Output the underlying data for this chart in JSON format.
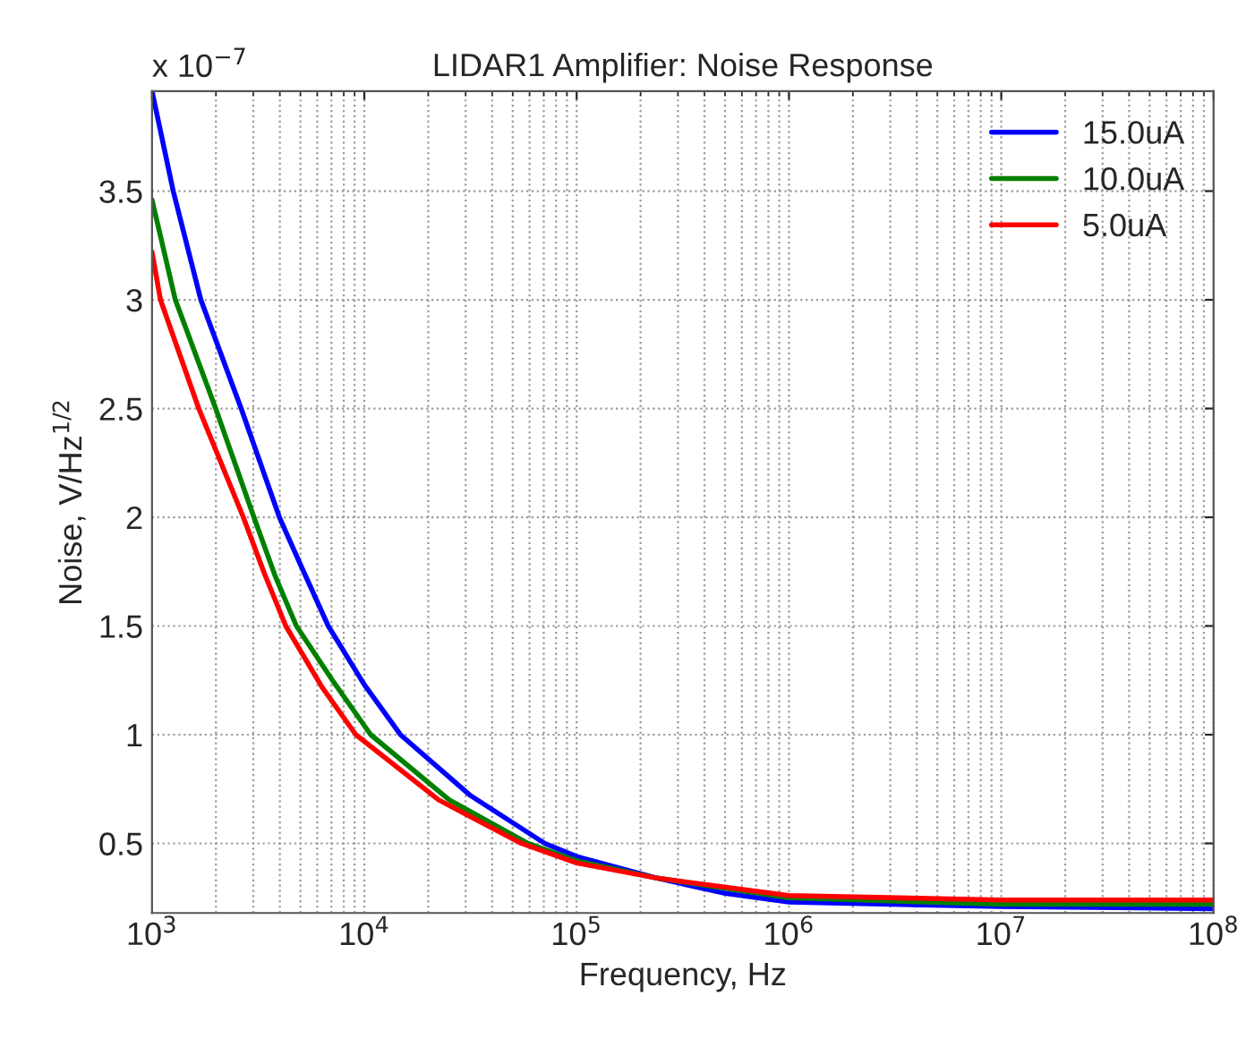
{
  "chart_data": {
    "type": "line",
    "title": "LIDAR1 Amplifier: Noise Response",
    "xlabel": "Frequency, Hz",
    "ylabel": "Noise, V/Hz$^{1/2}$",
    "annotations": [
      "x 10$^{−7}$"
    ],
    "series": [
      {
        "name": "15.0uA",
        "color": "#0000ff",
        "x": [
          1000,
          1259,
          1698,
          2630,
          3981,
          5012,
          6761,
          10000,
          14791,
          31623,
          70795,
          100000,
          239883,
          501187,
          1000000,
          10000000,
          100000000
        ],
        "values": [
          3.96,
          3.5,
          3.0,
          2.5,
          2.0,
          1.78,
          1.5,
          1.23,
          1.0,
          0.72,
          0.5,
          0.44,
          0.34,
          0.27,
          0.23,
          0.21,
          0.2
        ]
      },
      {
        "name": "10.0uA",
        "color": "#008000",
        "x": [
          1000,
          1288,
          1995,
          3020,
          3802,
          4786,
          7079,
          10715,
          25119,
          58884,
          100000,
          239883,
          1000000,
          10000000,
          100000000
        ],
        "values": [
          3.46,
          3.0,
          2.5,
          2.0,
          1.73,
          1.5,
          1.25,
          1.0,
          0.7,
          0.5,
          0.42,
          0.34,
          0.25,
          0.22,
          0.22
        ]
      },
      {
        "name": "5.0uA",
        "color": "#ff0000",
        "x": [
          1000,
          1096,
          1660,
          2692,
          3388,
          4266,
          6310,
          9120,
          22387,
          54954,
          100000,
          239883,
          1000000,
          10000000,
          100000000
        ],
        "values": [
          3.22,
          3.0,
          2.5,
          2.0,
          1.74,
          1.5,
          1.22,
          1.0,
          0.7,
          0.5,
          0.41,
          0.34,
          0.26,
          0.24,
          0.24
        ]
      }
    ],
    "log": "x",
    "xlim": [
      1000,
      100000000
    ],
    "xticks": [
      {
        "value": 1000,
        "label": "10$^{3}$"
      },
      {
        "value": 10000,
        "label": "10$^{4}$"
      },
      {
        "value": 100000,
        "label": "10$^{5}$"
      },
      {
        "value": 1000000,
        "label": "10$^{6}$"
      },
      {
        "value": 10000000,
        "label": "10$^{7}$"
      },
      {
        "value": 100000000,
        "label": "10$^{8}$"
      }
    ],
    "ylim": [
      0.18,
      3.96
    ],
    "yticks": [
      0.5,
      1,
      1.5,
      2,
      2.5,
      3,
      3.5
    ],
    "grid": true,
    "legend": "top right",
    "line_style": "solid",
    "marker": "none"
  }
}
